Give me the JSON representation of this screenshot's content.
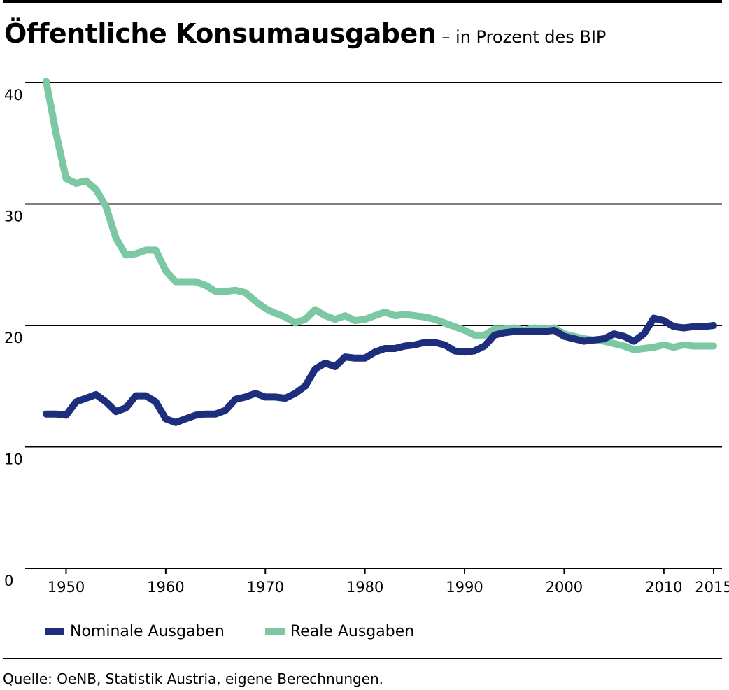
{
  "title": "Öffentliche Konsumausgaben",
  "subtitle": "– in Prozent des BIP",
  "source": "Quelle: OeNB, Statistik Austria, eigene Berechnungen.",
  "colors": {
    "nominal": "#1c2e7c",
    "real": "#7cc8a2",
    "grid": "#000000"
  },
  "chart_data": {
    "type": "line",
    "xlim": [
      1948,
      2015
    ],
    "ylim": [
      0,
      40
    ],
    "yticks": [
      0,
      10,
      20,
      30,
      40
    ],
    "xticks": [
      1950,
      1960,
      1970,
      1980,
      1990,
      2000,
      2010,
      2015
    ],
    "grid": "horizontal",
    "legend_position": "bottom",
    "series": [
      {
        "name": "Nominale Ausgaben",
        "color": "#1c2e7c",
        "points": [
          [
            1948,
            12.7
          ],
          [
            1949,
            12.7
          ],
          [
            1950,
            12.6
          ],
          [
            1951,
            13.7
          ],
          [
            1952,
            14.0
          ],
          [
            1953,
            14.3
          ],
          [
            1954,
            13.7
          ],
          [
            1955,
            12.9
          ],
          [
            1956,
            13.2
          ],
          [
            1957,
            14.2
          ],
          [
            1958,
            14.2
          ],
          [
            1959,
            13.7
          ],
          [
            1960,
            12.3
          ],
          [
            1961,
            12.0
          ],
          [
            1962,
            12.3
          ],
          [
            1963,
            12.6
          ],
          [
            1964,
            12.7
          ],
          [
            1965,
            12.7
          ],
          [
            1966,
            13.0
          ],
          [
            1967,
            13.9
          ],
          [
            1968,
            14.1
          ],
          [
            1969,
            14.4
          ],
          [
            1970,
            14.1
          ],
          [
            1971,
            14.1
          ],
          [
            1972,
            14.0
          ],
          [
            1973,
            14.4
          ],
          [
            1974,
            15.0
          ],
          [
            1975,
            16.4
          ],
          [
            1976,
            16.9
          ],
          [
            1977,
            16.6
          ],
          [
            1978,
            17.4
          ],
          [
            1979,
            17.3
          ],
          [
            1980,
            17.3
          ],
          [
            1981,
            17.8
          ],
          [
            1982,
            18.1
          ],
          [
            1983,
            18.1
          ],
          [
            1984,
            18.3
          ],
          [
            1985,
            18.4
          ],
          [
            1986,
            18.6
          ],
          [
            1987,
            18.6
          ],
          [
            1988,
            18.4
          ],
          [
            1989,
            17.9
          ],
          [
            1990,
            17.8
          ],
          [
            1991,
            17.9
          ],
          [
            1992,
            18.3
          ],
          [
            1993,
            19.2
          ],
          [
            1994,
            19.4
          ],
          [
            1995,
            19.5
          ],
          [
            1996,
            19.5
          ],
          [
            1997,
            19.5
          ],
          [
            1998,
            19.5
          ],
          [
            1999,
            19.6
          ],
          [
            2000,
            19.1
          ],
          [
            2001,
            18.9
          ],
          [
            2002,
            18.7
          ],
          [
            2003,
            18.8
          ],
          [
            2004,
            18.9
          ],
          [
            2005,
            19.3
          ],
          [
            2006,
            19.1
          ],
          [
            2007,
            18.7
          ],
          [
            2008,
            19.3
          ],
          [
            2009,
            20.6
          ],
          [
            2010,
            20.4
          ],
          [
            2011,
            19.9
          ],
          [
            2012,
            19.8
          ],
          [
            2013,
            19.9
          ],
          [
            2014,
            19.9
          ],
          [
            2015,
            20.0
          ]
        ]
      },
      {
        "name": "Reale Ausgaben",
        "color": "#7cc8a2",
        "points": [
          [
            1948,
            40.1
          ],
          [
            1949,
            35.8
          ],
          [
            1950,
            32.1
          ],
          [
            1951,
            31.7
          ],
          [
            1952,
            31.9
          ],
          [
            1953,
            31.2
          ],
          [
            1954,
            29.8
          ],
          [
            1955,
            27.2
          ],
          [
            1956,
            25.8
          ],
          [
            1957,
            25.9
          ],
          [
            1958,
            26.2
          ],
          [
            1959,
            26.2
          ],
          [
            1960,
            24.5
          ],
          [
            1961,
            23.6
          ],
          [
            1962,
            23.6
          ],
          [
            1963,
            23.6
          ],
          [
            1964,
            23.3
          ],
          [
            1965,
            22.8
          ],
          [
            1966,
            22.8
          ],
          [
            1967,
            22.9
          ],
          [
            1968,
            22.7
          ],
          [
            1969,
            22.0
          ],
          [
            1970,
            21.4
          ],
          [
            1971,
            21.0
          ],
          [
            1972,
            20.7
          ],
          [
            1973,
            20.2
          ],
          [
            1974,
            20.5
          ],
          [
            1975,
            21.3
          ],
          [
            1976,
            20.8
          ],
          [
            1977,
            20.5
          ],
          [
            1978,
            20.8
          ],
          [
            1979,
            20.4
          ],
          [
            1980,
            20.5
          ],
          [
            1981,
            20.8
          ],
          [
            1982,
            21.1
          ],
          [
            1983,
            20.8
          ],
          [
            1984,
            20.9
          ],
          [
            1985,
            20.8
          ],
          [
            1986,
            20.7
          ],
          [
            1987,
            20.5
          ],
          [
            1988,
            20.2
          ],
          [
            1989,
            19.9
          ],
          [
            1990,
            19.6
          ],
          [
            1991,
            19.2
          ],
          [
            1992,
            19.2
          ],
          [
            1993,
            19.7
          ],
          [
            1994,
            19.7
          ],
          [
            1995,
            19.8
          ],
          [
            1996,
            19.6
          ],
          [
            1997,
            19.8
          ],
          [
            1998,
            19.7
          ],
          [
            1999,
            19.8
          ],
          [
            2000,
            19.3
          ],
          [
            2001,
            19.1
          ],
          [
            2002,
            18.9
          ],
          [
            2003,
            18.8
          ],
          [
            2004,
            18.7
          ],
          [
            2005,
            18.5
          ],
          [
            2006,
            18.3
          ],
          [
            2007,
            18.0
          ],
          [
            2008,
            18.1
          ],
          [
            2009,
            18.2
          ],
          [
            2010,
            18.4
          ],
          [
            2011,
            18.2
          ],
          [
            2012,
            18.4
          ],
          [
            2013,
            18.3
          ],
          [
            2014,
            18.3
          ],
          [
            2015,
            18.3
          ]
        ]
      }
    ]
  }
}
